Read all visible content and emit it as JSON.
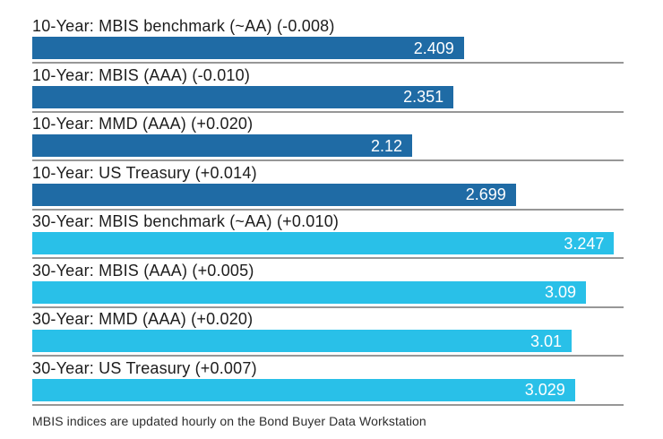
{
  "chart_data": {
    "type": "bar",
    "orientation": "horizontal",
    "title": "",
    "xlabel": "",
    "ylabel": "",
    "xlim": [
      0,
      3.3
    ],
    "grid": false,
    "legend": "none",
    "colors": {
      "ten_year": "#1f6ba5",
      "thirty_year": "#29c0e8",
      "separator": "#979797",
      "label_text": "#1d1d1d",
      "value_text": "#ffffff"
    },
    "bars": [
      {
        "label": "10-Year: MBIS benchmark (~AA) (-0.008)",
        "value": 2.409,
        "value_label": "2.409",
        "group": "ten_year"
      },
      {
        "label": "10-Year: MBIS (AAA) (-0.010)",
        "value": 2.351,
        "value_label": "2.351",
        "group": "ten_year"
      },
      {
        "label": "10-Year: MMD (AAA) (+0.020)",
        "value": 2.12,
        "value_label": "2.12",
        "group": "ten_year"
      },
      {
        "label": "10-Year: US Treasury (+0.014)",
        "value": 2.699,
        "value_label": "2.699",
        "group": "ten_year"
      },
      {
        "label": "30-Year: MBIS benchmark (~AA) (+0.010)",
        "value": 3.247,
        "value_label": "3.247",
        "group": "thirty_year"
      },
      {
        "label": "30-Year: MBIS (AAA) (+0.005)",
        "value": 3.09,
        "value_label": "3.09",
        "group": "thirty_year"
      },
      {
        "label": "30-Year: MMD (AAA) (+0.020)",
        "value": 3.01,
        "value_label": "3.01",
        "group": "thirty_year"
      },
      {
        "label": "30-Year: US Treasury (+0.007)",
        "value": 3.029,
        "value_label": "3.029",
        "group": "thirty_year"
      }
    ],
    "footnote": "MBIS indices are updated hourly on the Bond Buyer Data Workstation"
  }
}
